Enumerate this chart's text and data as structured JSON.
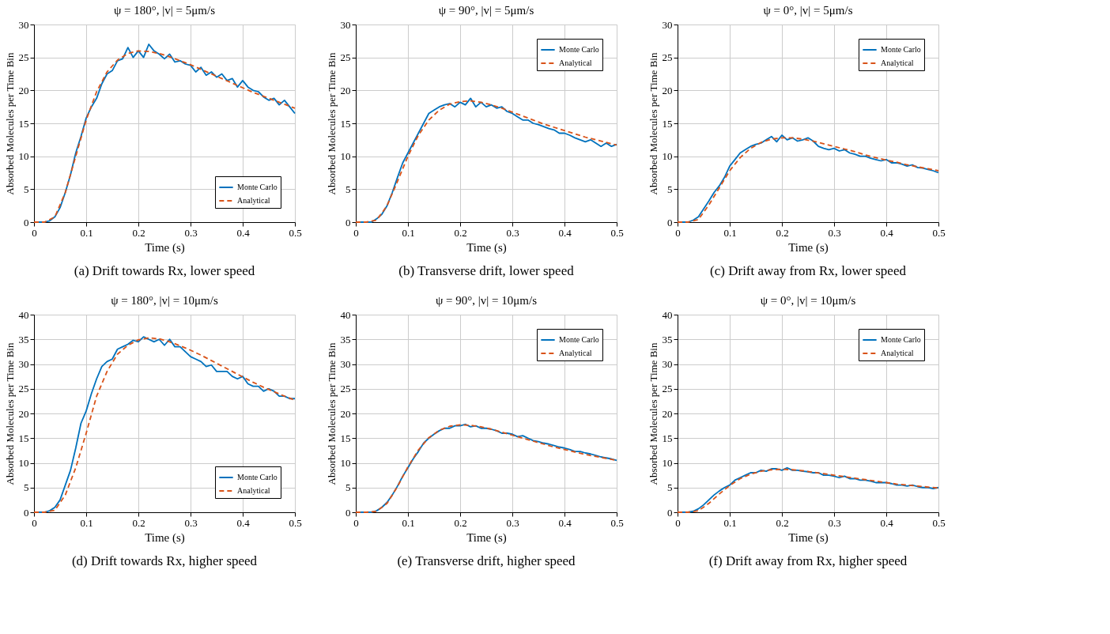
{
  "chart_data": [
    {
      "type": "line",
      "title": "ψ = 180°, |v| = 5μm/s",
      "xlabel": "Time (s)",
      "ylabel": "Absorbed Molecules per Time Bin",
      "annotations": [
        "(a) Drift towards Rx, lower speed"
      ],
      "xlim": [
        0,
        0.5
      ],
      "xticks": [
        0,
        0.1,
        0.2,
        0.3,
        0.4,
        0.5
      ],
      "ylim": [
        0,
        30
      ],
      "yticks": [
        0,
        5,
        10,
        15,
        20,
        25,
        30
      ],
      "grid": true,
      "legend": "bottom right",
      "series": [
        {
          "name": "Monte Carlo",
          "color": "#0072bd",
          "line_style": "solid",
          "x": [
            0,
            0.01,
            0.02,
            0.03,
            0.04,
            0.05,
            0.06,
            0.07,
            0.08,
            0.09,
            0.1,
            0.11,
            0.12,
            0.13,
            0.14,
            0.15,
            0.16,
            0.17,
            0.18,
            0.19,
            0.2,
            0.21,
            0.22,
            0.23,
            0.24,
            0.25,
            0.26,
            0.27,
            0.28,
            0.29,
            0.3,
            0.31,
            0.32,
            0.33,
            0.34,
            0.35,
            0.36,
            0.37,
            0.38,
            0.39,
            0.4,
            0.41,
            0.42,
            0.43,
            0.44,
            0.45,
            0.46,
            0.47,
            0.48,
            0.49,
            0.5
          ],
          "values": [
            0,
            0,
            0,
            0.2,
            0.8,
            2.2,
            4.5,
            7.2,
            10.5,
            13,
            15.8,
            17.5,
            18.8,
            21,
            22.5,
            23,
            24.5,
            24.8,
            26.5,
            25,
            26,
            25,
            27,
            26,
            25.5,
            24.8,
            25.5,
            24.3,
            24.5,
            24,
            23.8,
            22.8,
            23.5,
            22.3,
            22.8,
            22,
            22.5,
            21.5,
            21.8,
            20.5,
            21.5,
            20.5,
            20,
            19.8,
            19,
            18.5,
            18.8,
            17.8,
            18.5,
            17.5,
            16.5
          ]
        },
        {
          "name": "Analytical",
          "color": "#d95319",
          "line_style": "dashed",
          "x": [
            0,
            0.02,
            0.04,
            0.06,
            0.08,
            0.1,
            0.12,
            0.14,
            0.16,
            0.18,
            0.2,
            0.22,
            0.24,
            0.26,
            0.28,
            0.3,
            0.32,
            0.34,
            0.36,
            0.38,
            0.4,
            0.42,
            0.44,
            0.46,
            0.48,
            0.5
          ],
          "values": [
            0,
            0,
            0.8,
            4.5,
            10,
            15.5,
            19.8,
            22.8,
            24.6,
            25.6,
            26,
            25.9,
            25.6,
            25.1,
            24.5,
            23.9,
            23.2,
            22.5,
            21.8,
            21.1,
            20.4,
            19.7,
            19.1,
            18.5,
            17.9,
            17.3
          ]
        }
      ]
    },
    {
      "type": "line",
      "title": "ψ = 90°, |v| = 5μm/s",
      "xlabel": "Time (s)",
      "ylabel": "Absorbed Molecules per Time Bin",
      "annotations": [
        "(b) Transverse drift, lower speed"
      ],
      "xlim": [
        0,
        0.5
      ],
      "xticks": [
        0,
        0.1,
        0.2,
        0.3,
        0.4,
        0.5
      ],
      "ylim": [
        0,
        30
      ],
      "yticks": [
        0,
        5,
        10,
        15,
        20,
        25,
        30
      ],
      "grid": true,
      "legend": "top right",
      "series": [
        {
          "name": "Monte Carlo",
          "color": "#0072bd",
          "line_style": "solid",
          "x": [
            0,
            0.01,
            0.02,
            0.03,
            0.04,
            0.05,
            0.06,
            0.07,
            0.08,
            0.09,
            0.1,
            0.11,
            0.12,
            0.13,
            0.14,
            0.15,
            0.16,
            0.17,
            0.18,
            0.19,
            0.2,
            0.21,
            0.22,
            0.23,
            0.24,
            0.25,
            0.26,
            0.27,
            0.28,
            0.29,
            0.3,
            0.31,
            0.32,
            0.33,
            0.34,
            0.35,
            0.36,
            0.37,
            0.38,
            0.39,
            0.4,
            0.41,
            0.42,
            0.43,
            0.44,
            0.45,
            0.46,
            0.47,
            0.48,
            0.49,
            0.5
          ],
          "values": [
            0,
            0,
            0,
            0,
            0.5,
            1.2,
            2.5,
            4.5,
            6.8,
            9,
            10.5,
            12,
            13.5,
            15,
            16.5,
            17,
            17.5,
            17.8,
            18,
            17.5,
            18.2,
            17.8,
            18.8,
            17.5,
            18.2,
            17.5,
            17.8,
            17.3,
            17.5,
            16.8,
            16.5,
            16,
            15.5,
            15.5,
            15,
            14.8,
            14.5,
            14.2,
            14,
            13.5,
            13.5,
            13.2,
            12.8,
            12.5,
            12.2,
            12.5,
            12,
            11.5,
            12,
            11.5,
            11.8
          ]
        },
        {
          "name": "Analytical",
          "color": "#d95319",
          "line_style": "dashed",
          "x": [
            0,
            0.02,
            0.04,
            0.06,
            0.08,
            0.1,
            0.12,
            0.14,
            0.16,
            0.18,
            0.2,
            0.22,
            0.24,
            0.26,
            0.28,
            0.3,
            0.32,
            0.34,
            0.36,
            0.38,
            0.4,
            0.42,
            0.44,
            0.46,
            0.48,
            0.5
          ],
          "values": [
            0,
            0,
            0.3,
            2.5,
            6.2,
            10,
            13.2,
            15.5,
            17,
            17.9,
            18.3,
            18.4,
            18.2,
            17.8,
            17.3,
            16.7,
            16.1,
            15.5,
            14.9,
            14.4,
            13.9,
            13.4,
            12.9,
            12.5,
            12.1,
            11.7
          ]
        }
      ]
    },
    {
      "type": "line",
      "title": "ψ = 0°, |v| = 5μm/s",
      "xlabel": "Time (s)",
      "ylabel": "Absorbed Molecules per Time Bin",
      "annotations": [
        "(c) Drift away from Rx, lower speed"
      ],
      "xlim": [
        0,
        0.5
      ],
      "xticks": [
        0,
        0.1,
        0.2,
        0.3,
        0.4,
        0.5
      ],
      "ylim": [
        0,
        30
      ],
      "yticks": [
        0,
        5,
        10,
        15,
        20,
        25,
        30
      ],
      "grid": true,
      "legend": "top right",
      "series": [
        {
          "name": "Monte Carlo",
          "color": "#0072bd",
          "line_style": "solid",
          "x": [
            0,
            0.01,
            0.02,
            0.03,
            0.04,
            0.05,
            0.06,
            0.07,
            0.08,
            0.09,
            0.1,
            0.11,
            0.12,
            0.13,
            0.14,
            0.15,
            0.16,
            0.17,
            0.18,
            0.19,
            0.2,
            0.21,
            0.22,
            0.23,
            0.24,
            0.25,
            0.26,
            0.27,
            0.28,
            0.29,
            0.3,
            0.31,
            0.32,
            0.33,
            0.34,
            0.35,
            0.36,
            0.37,
            0.38,
            0.39,
            0.4,
            0.41,
            0.42,
            0.43,
            0.44,
            0.45,
            0.46,
            0.47,
            0.48,
            0.49,
            0.5
          ],
          "values": [
            0,
            0,
            0,
            0.3,
            0.8,
            2,
            3.2,
            4.5,
            5.5,
            6.8,
            8.5,
            9.5,
            10.5,
            11,
            11.5,
            11.8,
            12,
            12.5,
            13,
            12.2,
            13.2,
            12.5,
            12.8,
            12.3,
            12.5,
            12.8,
            12.3,
            11.5,
            11.2,
            11,
            11.2,
            10.8,
            11,
            10.5,
            10.3,
            10,
            10,
            9.7,
            9.5,
            9.3,
            9.5,
            9,
            9,
            8.8,
            8.5,
            8.7,
            8.3,
            8.2,
            8,
            7.8,
            7.5
          ]
        },
        {
          "name": "Analytical",
          "color": "#d95319",
          "line_style": "dashed",
          "x": [
            0,
            0.02,
            0.04,
            0.06,
            0.08,
            0.1,
            0.12,
            0.14,
            0.16,
            0.18,
            0.2,
            0.22,
            0.24,
            0.26,
            0.28,
            0.3,
            0.32,
            0.34,
            0.36,
            0.38,
            0.4,
            0.42,
            0.44,
            0.46,
            0.48,
            0.5
          ],
          "values": [
            0,
            0,
            0.4,
            2.6,
            5.2,
            7.8,
            9.8,
            11.2,
            12.1,
            12.6,
            12.8,
            12.8,
            12.6,
            12.3,
            11.9,
            11.5,
            11.1,
            10.7,
            10.2,
            9.8,
            9.4,
            9.1,
            8.7,
            8.4,
            8.1,
            7.8
          ]
        }
      ]
    },
    {
      "type": "line",
      "title": "ψ = 180°, |v| = 10μm/s",
      "xlabel": "Time (s)",
      "ylabel": "Absorbed Molecules per Time Bin",
      "annotations": [
        "(d) Drift towards Rx, higher speed"
      ],
      "xlim": [
        0,
        0.5
      ],
      "xticks": [
        0,
        0.1,
        0.2,
        0.3,
        0.4,
        0.5
      ],
      "ylim": [
        0,
        40
      ],
      "yticks": [
        0,
        5,
        10,
        15,
        20,
        25,
        30,
        35,
        40
      ],
      "grid": true,
      "legend": "bottom right",
      "series": [
        {
          "name": "Monte Carlo",
          "color": "#0072bd",
          "line_style": "solid",
          "x": [
            0,
            0.01,
            0.02,
            0.03,
            0.04,
            0.05,
            0.06,
            0.07,
            0.08,
            0.09,
            0.1,
            0.11,
            0.12,
            0.13,
            0.14,
            0.15,
            0.16,
            0.17,
            0.18,
            0.19,
            0.2,
            0.21,
            0.22,
            0.23,
            0.24,
            0.25,
            0.26,
            0.27,
            0.28,
            0.29,
            0.3,
            0.31,
            0.32,
            0.33,
            0.34,
            0.35,
            0.36,
            0.37,
            0.38,
            0.39,
            0.4,
            0.41,
            0.42,
            0.43,
            0.44,
            0.45,
            0.46,
            0.47,
            0.48,
            0.49,
            0.5
          ],
          "values": [
            0,
            0,
            0,
            0.3,
            1,
            2.5,
            5.5,
            8.5,
            13,
            18,
            20.5,
            24,
            27,
            29.5,
            30.5,
            31,
            33,
            33.5,
            34,
            34.8,
            34.5,
            35.5,
            35,
            34.5,
            35,
            33.8,
            35,
            33.5,
            33.5,
            32.5,
            31.5,
            31,
            30.5,
            29.5,
            29.8,
            28.5,
            28.5,
            28.5,
            27.5,
            27,
            27.5,
            26,
            25.5,
            25.5,
            24.5,
            25,
            24.5,
            23.5,
            23.5,
            23,
            23
          ]
        },
        {
          "name": "Analytical",
          "color": "#d95319",
          "line_style": "dashed",
          "x": [
            0,
            0.02,
            0.04,
            0.06,
            0.08,
            0.1,
            0.12,
            0.14,
            0.16,
            0.18,
            0.2,
            0.22,
            0.24,
            0.26,
            0.28,
            0.3,
            0.32,
            0.34,
            0.36,
            0.38,
            0.4,
            0.42,
            0.44,
            0.46,
            0.48,
            0.5
          ],
          "values": [
            0,
            0,
            0.4,
            3.5,
            9,
            16,
            23.5,
            28.5,
            32,
            33.8,
            34.9,
            35.3,
            35.1,
            34.5,
            33.7,
            32.8,
            31.8,
            30.7,
            29.6,
            28.5,
            27.4,
            26.3,
            25.3,
            24.4,
            23.5,
            22.7
          ]
        }
      ]
    },
    {
      "type": "line",
      "title": "ψ = 90°, |v| = 10μm/s",
      "xlabel": "Time (s)",
      "ylabel": "Absorbed Molecules per Time Bin",
      "annotations": [
        "(e) Transverse drift, higher speed"
      ],
      "xlim": [
        0,
        0.5
      ],
      "xticks": [
        0,
        0.1,
        0.2,
        0.3,
        0.4,
        0.5
      ],
      "ylim": [
        0,
        40
      ],
      "yticks": [
        0,
        5,
        10,
        15,
        20,
        25,
        30,
        35,
        40
      ],
      "grid": true,
      "legend": "top right",
      "series": [
        {
          "name": "Monte Carlo",
          "color": "#0072bd",
          "line_style": "solid",
          "x": [
            0,
            0.01,
            0.02,
            0.03,
            0.04,
            0.05,
            0.06,
            0.07,
            0.08,
            0.09,
            0.1,
            0.11,
            0.12,
            0.13,
            0.14,
            0.15,
            0.16,
            0.17,
            0.18,
            0.19,
            0.2,
            0.21,
            0.22,
            0.23,
            0.24,
            0.25,
            0.26,
            0.27,
            0.28,
            0.29,
            0.3,
            0.31,
            0.32,
            0.33,
            0.34,
            0.35,
            0.36,
            0.37,
            0.38,
            0.39,
            0.4,
            0.41,
            0.42,
            0.43,
            0.44,
            0.45,
            0.46,
            0.47,
            0.48,
            0.49,
            0.5
          ],
          "values": [
            0,
            0,
            0,
            0,
            0.3,
            1,
            2,
            3.5,
            5.3,
            7.3,
            9,
            10.8,
            12.3,
            14,
            15,
            15.8,
            16.5,
            17,
            17,
            17.5,
            17.5,
            17.8,
            17.3,
            17.5,
            17,
            17,
            16.8,
            16.5,
            16,
            16,
            15.8,
            15.3,
            15.5,
            15,
            14.5,
            14.3,
            14,
            13.8,
            13.5,
            13.2,
            13,
            12.7,
            12.3,
            12.3,
            12,
            11.8,
            11.5,
            11.2,
            11,
            10.8,
            10.5
          ]
        },
        {
          "name": "Analytical",
          "color": "#d95319",
          "line_style": "dashed",
          "x": [
            0,
            0.02,
            0.04,
            0.06,
            0.08,
            0.1,
            0.12,
            0.14,
            0.16,
            0.18,
            0.2,
            0.22,
            0.24,
            0.26,
            0.28,
            0.3,
            0.32,
            0.34,
            0.36,
            0.38,
            0.4,
            0.42,
            0.44,
            0.46,
            0.48,
            0.5
          ],
          "values": [
            0,
            0,
            0.2,
            1.8,
            5.2,
            9.2,
            12.6,
            15.1,
            16.6,
            17.4,
            17.7,
            17.6,
            17.3,
            16.8,
            16.2,
            15.6,
            15,
            14.4,
            13.8,
            13.2,
            12.7,
            12.2,
            11.7,
            11.3,
            10.9,
            10.5
          ]
        }
      ]
    },
    {
      "type": "line",
      "title": "ψ = 0°, |v| = 10μm/s",
      "xlabel": "Time (s)",
      "ylabel": "Absorbed Molecules per Time Bin",
      "annotations": [
        "(f) Drift away from Rx, higher speed"
      ],
      "xlim": [
        0,
        0.5
      ],
      "xticks": [
        0,
        0.1,
        0.2,
        0.3,
        0.4,
        0.5
      ],
      "ylim": [
        0,
        40
      ],
      "yticks": [
        0,
        5,
        10,
        15,
        20,
        25,
        30,
        35,
        40
      ],
      "grid": true,
      "legend": "top right",
      "series": [
        {
          "name": "Monte Carlo",
          "color": "#0072bd",
          "line_style": "solid",
          "x": [
            0,
            0.01,
            0.02,
            0.03,
            0.04,
            0.05,
            0.06,
            0.07,
            0.08,
            0.09,
            0.1,
            0.11,
            0.12,
            0.13,
            0.14,
            0.15,
            0.16,
            0.17,
            0.18,
            0.19,
            0.2,
            0.21,
            0.22,
            0.23,
            0.24,
            0.25,
            0.26,
            0.27,
            0.28,
            0.29,
            0.3,
            0.31,
            0.32,
            0.33,
            0.34,
            0.35,
            0.36,
            0.37,
            0.38,
            0.39,
            0.4,
            0.41,
            0.42,
            0.43,
            0.44,
            0.45,
            0.46,
            0.47,
            0.48,
            0.49,
            0.5
          ],
          "values": [
            0,
            0,
            0,
            0.2,
            0.7,
            1.5,
            2.5,
            3.5,
            4.3,
            5,
            5.5,
            6.5,
            7,
            7.5,
            8,
            8,
            8.5,
            8.3,
            8.8,
            8.8,
            8.5,
            9,
            8.5,
            8.5,
            8.3,
            8.2,
            8,
            8,
            7.5,
            7.5,
            7.3,
            7,
            7.3,
            6.8,
            6.8,
            6.5,
            6.5,
            6.3,
            6,
            6,
            6,
            5.8,
            5.5,
            5.5,
            5.3,
            5.5,
            5.2,
            5,
            5,
            4.8,
            5
          ]
        },
        {
          "name": "Analytical",
          "color": "#d95319",
          "line_style": "dashed",
          "x": [
            0,
            0.02,
            0.04,
            0.06,
            0.08,
            0.1,
            0.12,
            0.14,
            0.16,
            0.18,
            0.2,
            0.22,
            0.24,
            0.26,
            0.28,
            0.3,
            0.32,
            0.34,
            0.36,
            0.38,
            0.4,
            0.42,
            0.44,
            0.46,
            0.48,
            0.5
          ],
          "values": [
            0,
            0,
            0.3,
            1.8,
            3.7,
            5.4,
            6.8,
            7.7,
            8.3,
            8.6,
            8.7,
            8.6,
            8.4,
            8.1,
            7.8,
            7.5,
            7.2,
            6.9,
            6.6,
            6.3,
            6,
            5.7,
            5.5,
            5.3,
            5.1,
            4.9
          ]
        }
      ]
    }
  ]
}
